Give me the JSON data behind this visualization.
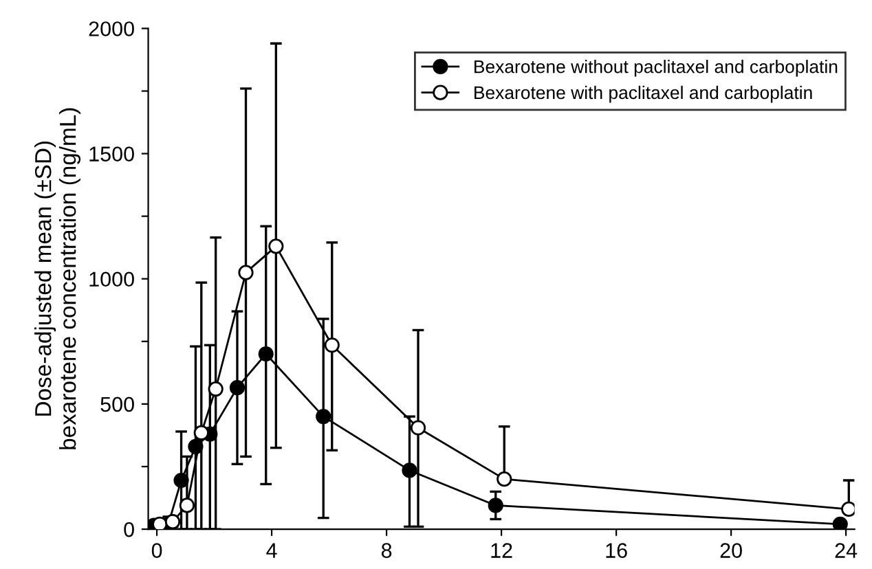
{
  "chart_data": {
    "type": "line",
    "ylabel": "Dose-adjusted mean (±SD)\nbexarotene concentration (ng/mL)",
    "series": [
      {
        "name": "Bexarotene without paclitaxel and carboplatin",
        "color": "#000000",
        "x": [
          -0.1,
          0.4,
          0.85,
          1.35,
          1.85,
          2.8,
          3.8,
          5.8,
          8.8,
          11.8,
          23.8
        ],
        "values": [
          15,
          20,
          195,
          330,
          380,
          565,
          700,
          450,
          235,
          95,
          20
        ],
        "errors": [
          null,
          [
            0,
            50
          ],
          [
            0,
            390
          ],
          [
            0,
            730
          ],
          [
            0,
            735
          ],
          [
            260,
            870
          ],
          [
            180,
            1210
          ],
          [
            45,
            840
          ],
          [
            10,
            450
          ],
          [
            40,
            150
          ],
          null
        ]
      },
      {
        "name": "Bexarotene with paclitaxel and carboplatin",
        "color": "#ffffff",
        "x": [
          0.1,
          0.55,
          1.05,
          1.55,
          2.05,
          3.1,
          4.15,
          6.1,
          9.1,
          12.1,
          24.1
        ],
        "values": [
          20,
          30,
          95,
          385,
          560,
          1025,
          1130,
          735,
          405,
          200,
          80
        ],
        "errors": [
          null,
          [
            10,
            50
          ],
          [
            0,
            290
          ],
          [
            0,
            985
          ],
          [
            0,
            1165
          ],
          [
            290,
            1760
          ],
          [
            325,
            1940
          ],
          [
            315,
            1145
          ],
          [
            10,
            795
          ],
          [
            200,
            410
          ],
          [
            80,
            195
          ]
        ]
      }
    ],
    "xlim": [
      -0.3,
      24.3
    ],
    "ylim": [
      0,
      2000
    ],
    "xticks": [
      0,
      4,
      8,
      12,
      16,
      20,
      24
    ],
    "yticks": [
      0,
      {
        "value": 250,
        "label": null
      },
      500,
      {
        "value": 750,
        "label": null
      },
      1000,
      {
        "value": 1250,
        "label": null
      },
      1500,
      {
        "value": 1750,
        "label": null
      },
      2000
    ],
    "marker": "circle",
    "line_style": "solid",
    "grid": false,
    "legend": "top right"
  }
}
